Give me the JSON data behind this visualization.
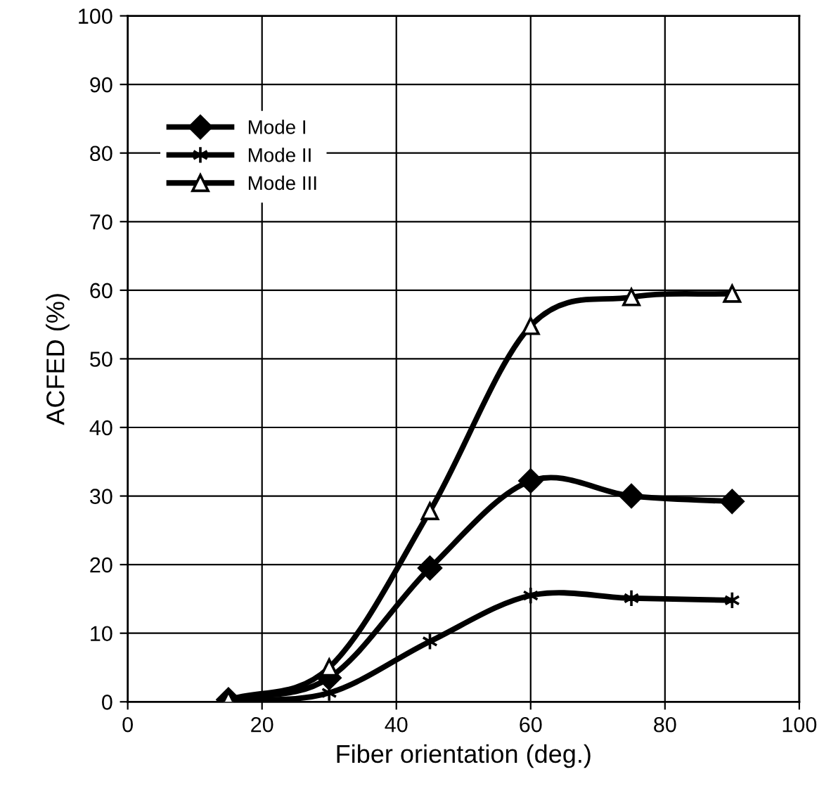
{
  "chart_data": {
    "type": "line",
    "xlabel": "Fiber orientation (deg.)",
    "ylabel": "ACFED (%)",
    "x": [
      15,
      30,
      45,
      60,
      75,
      90
    ],
    "series": [
      {
        "name": "Mode I",
        "color": "#000000",
        "marker": "diamond",
        "values": [
          0.3,
          3.5,
          19.5,
          32.2,
          30,
          29.2
        ]
      },
      {
        "name": "Mode II",
        "color": "#000000",
        "marker": "cross",
        "values": [
          0.2,
          1.3,
          8.8,
          15.5,
          15.1,
          14.8
        ]
      },
      {
        "name": "Mode III",
        "color": "#000000",
        "marker": "triangle",
        "values": [
          0.3,
          5,
          27.8,
          54.8,
          59,
          59.5
        ]
      }
    ],
    "xlim": [
      0,
      100
    ],
    "xticks": [
      0,
      20,
      40,
      60,
      80,
      100
    ],
    "ylim": [
      0,
      100
    ],
    "yticks": [
      0,
      10,
      20,
      30,
      40,
      50,
      60,
      70,
      80,
      90,
      100
    ],
    "grid": true,
    "legend": "top left",
    "line_style": "solid"
  }
}
